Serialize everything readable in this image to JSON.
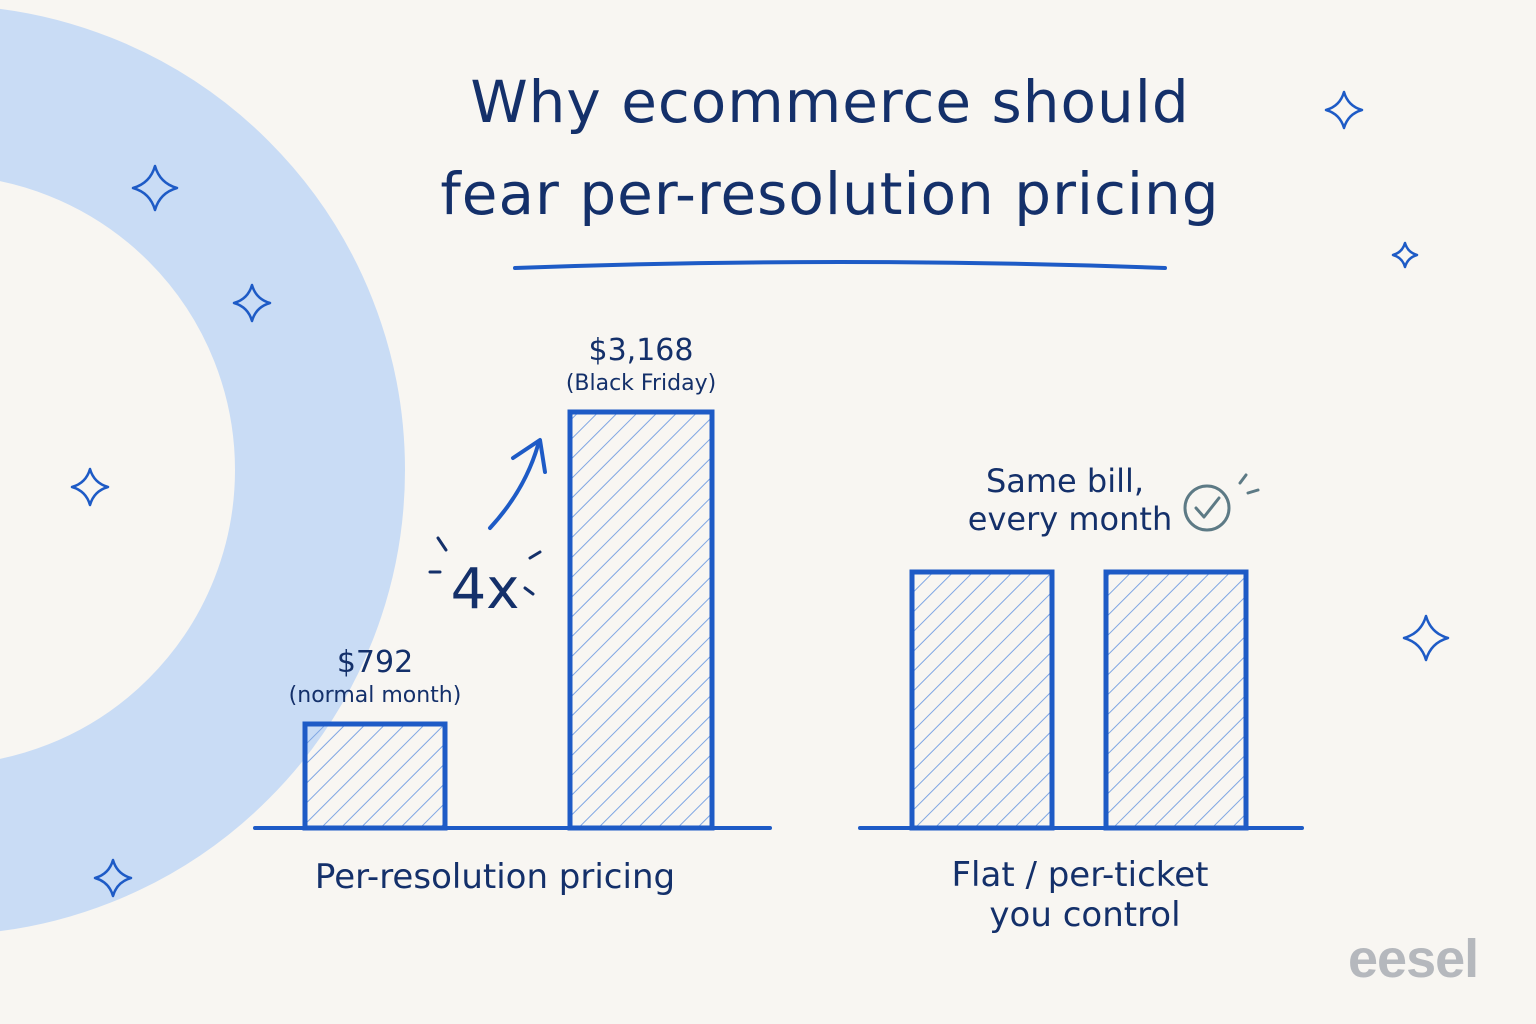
{
  "title": {
    "line1": "Why ecommerce should",
    "line2": "fear per-resolution pricing"
  },
  "brand": "eesel",
  "colors": {
    "background": "#f8f6f2",
    "arc": "#c9dcf5",
    "ink": "#14306a",
    "accent": "#1e5bc6",
    "hatch": "#7fa6e3",
    "check": "#5d7a85"
  },
  "chart_data": [
    {
      "type": "bar",
      "group_label": "Per-resolution pricing",
      "categories": [
        "normal month",
        "Black Friday"
      ],
      "values": [
        792,
        3168
      ],
      "value_labels": [
        "$792",
        "$3,168"
      ],
      "sub_labels": [
        "(normal month)",
        "(Black Friday)"
      ],
      "multiplier_label": "4x",
      "ylim": [
        0,
        3300
      ]
    },
    {
      "type": "bar",
      "group_label_lines": [
        "Flat / per-ticket",
        "you control"
      ],
      "values": [
        1,
        1
      ],
      "annotation_lines": [
        "Same bill,",
        "every month"
      ],
      "annotation_icon": "check-circle-icon"
    }
  ],
  "decorations": {
    "sparkle_icon": "sparkle-icon"
  }
}
